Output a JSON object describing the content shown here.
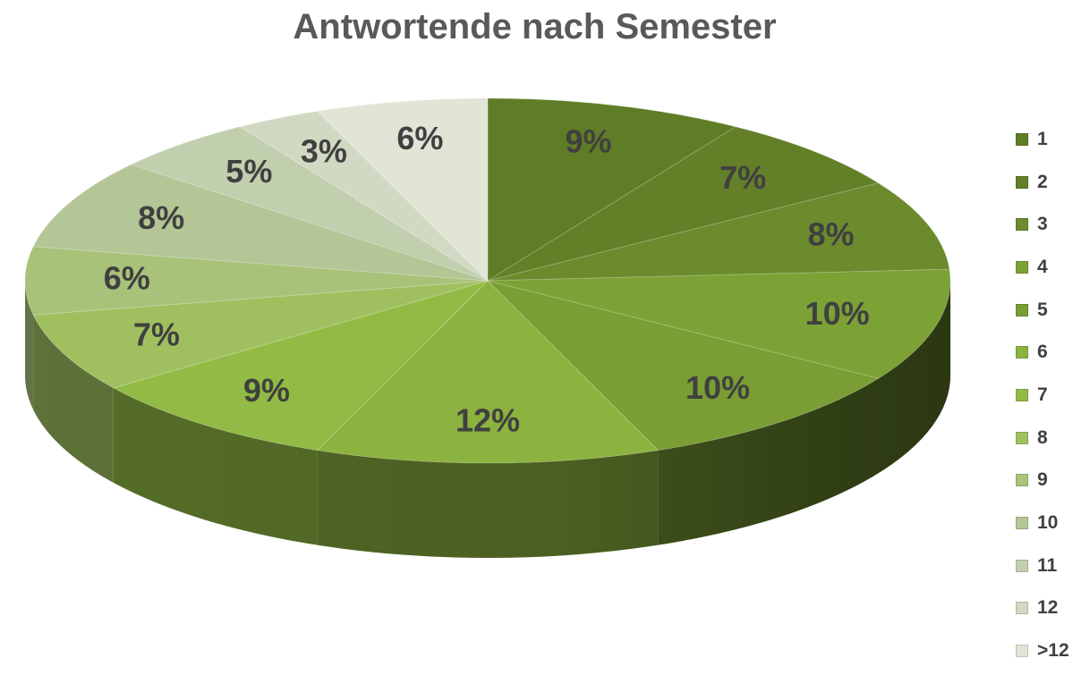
{
  "chart_data": {
    "type": "pie",
    "title": "Antwortende nach Semester",
    "categories": [
      "1",
      "2",
      "3",
      "4",
      "5",
      "6",
      "7",
      "8",
      "9",
      "10",
      "11",
      "12",
      ">12"
    ],
    "values": [
      9,
      7,
      8,
      10,
      10,
      12,
      9,
      7,
      6,
      8,
      5,
      3,
      6
    ],
    "data_labels": [
      "9%",
      "7%",
      "8%",
      "10%",
      "10%",
      "12%",
      "9%",
      "7%",
      "6%",
      "8%",
      "5%",
      "3%",
      "6%"
    ],
    "colors": [
      "#5f7d26",
      "#637f28",
      "#6b8b2d",
      "#7ca135",
      "#7a9e34",
      "#8cb33f",
      "#92bb45",
      "#a0c060",
      "#a9c27a",
      "#b4c596",
      "#c2cfae",
      "#d2d9c3",
      "#e1e5d6"
    ],
    "legend_position": "right",
    "style": "3d-tilted"
  }
}
